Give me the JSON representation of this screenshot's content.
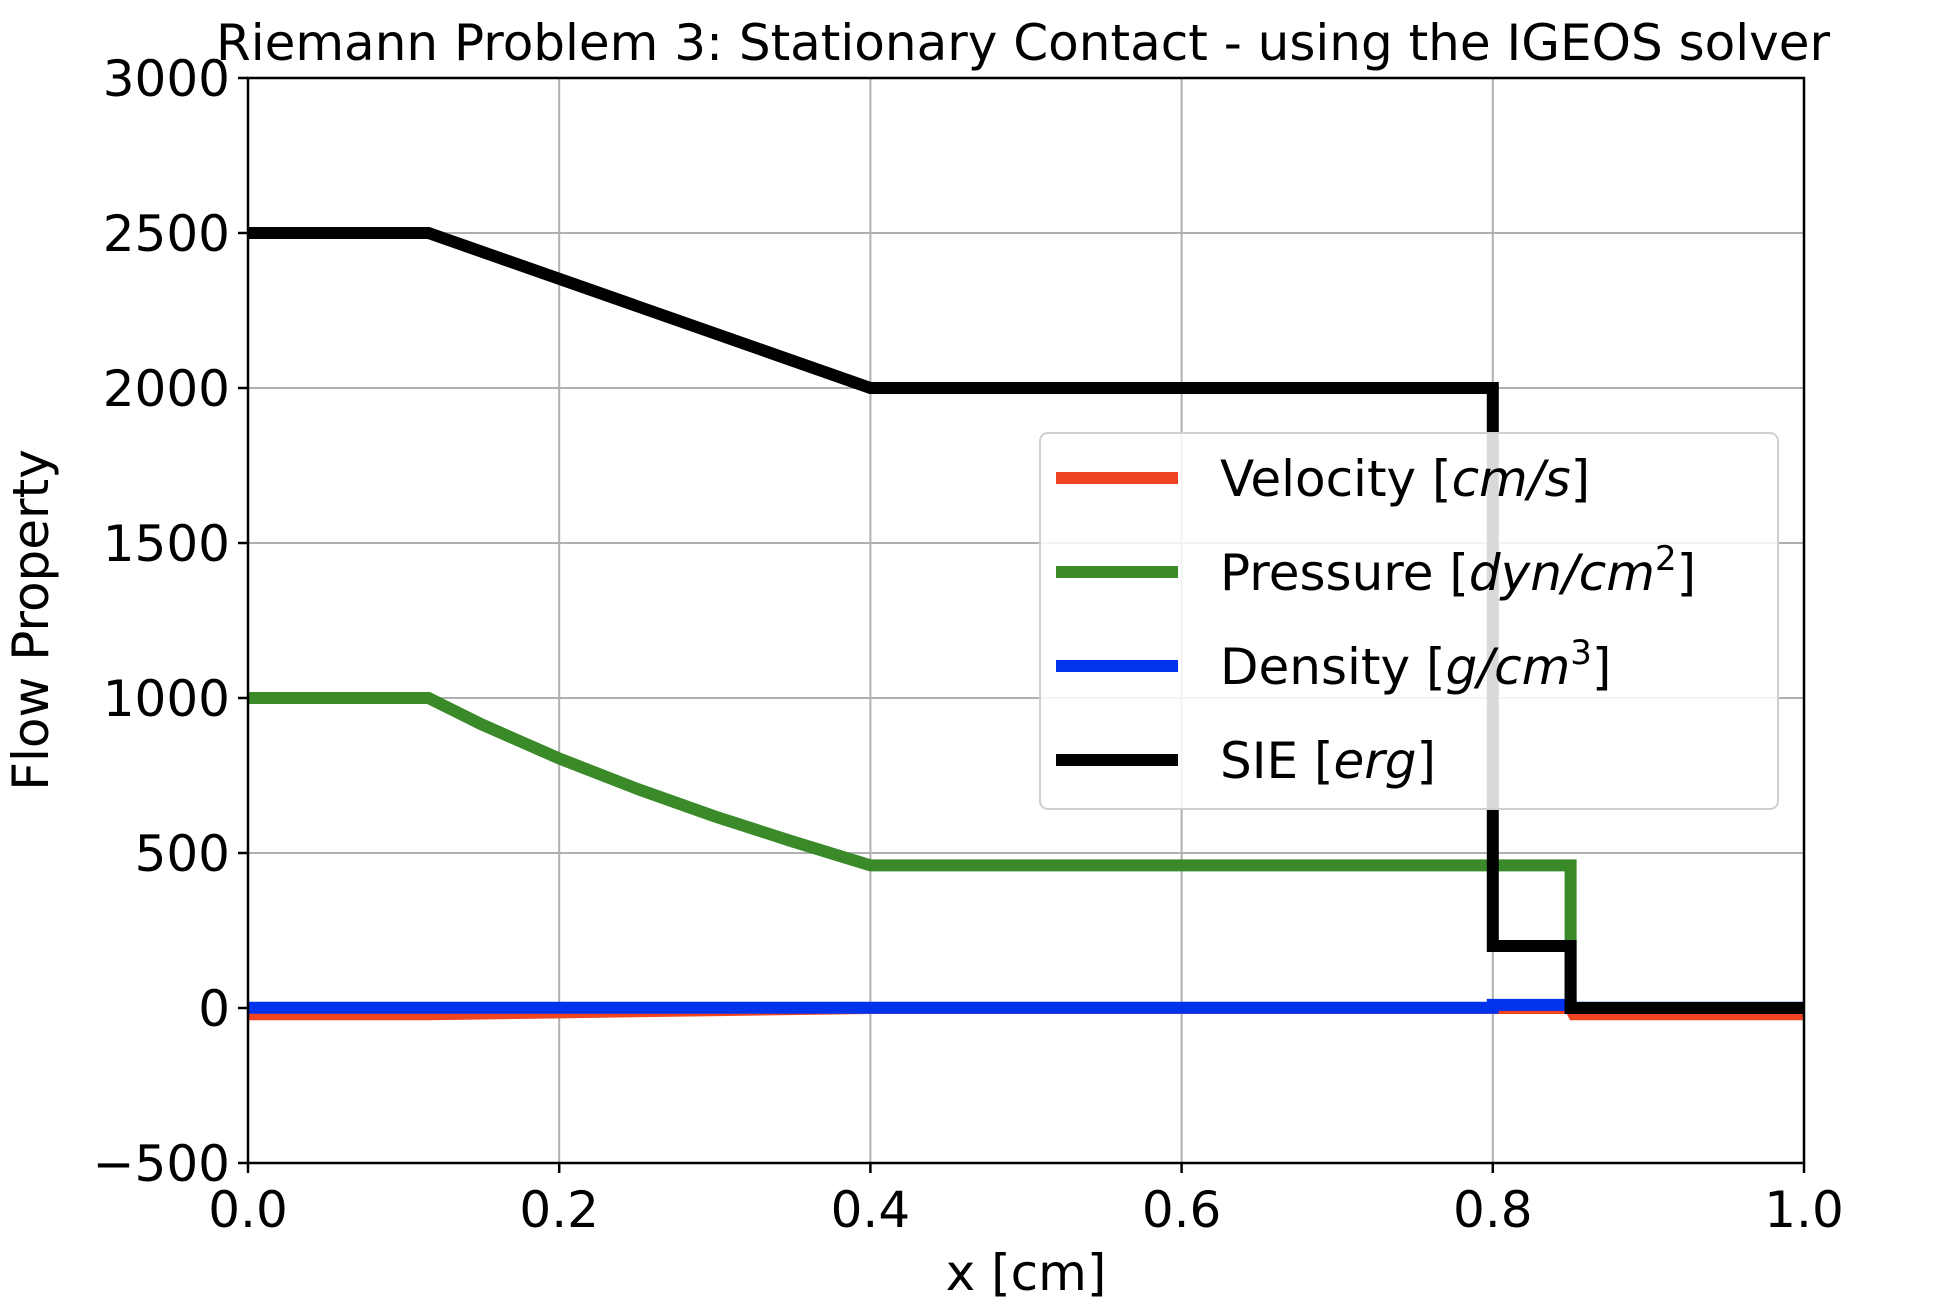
{
  "chart_data": {
    "type": "line",
    "title": "Riemann Problem 3: Stationary Contact - using the IGEOS solver",
    "xlabel": "x [cm]",
    "ylabel": "Flow Property",
    "xlim": [
      0.0,
      1.0
    ],
    "ylim": [
      -500,
      3000
    ],
    "xticks": [
      0.0,
      0.2,
      0.4,
      0.6,
      0.8,
      1.0
    ],
    "xtick_labels": [
      "0.0",
      "0.2",
      "0.4",
      "0.6",
      "0.8",
      "1.0"
    ],
    "yticks": [
      -500,
      0,
      500,
      1000,
      1500,
      2000,
      2500,
      3000
    ],
    "ytick_labels": [
      "−500",
      "0",
      "500",
      "1000",
      "1500",
      "2000",
      "2500",
      "3000"
    ],
    "grid": true,
    "legend_position": "center-right",
    "series": [
      {
        "name": "Velocity",
        "unit": "cm/s",
        "color": "#ee4422",
        "x": [
          0.0,
          0.116,
          0.4,
          0.8,
          0.85,
          0.852,
          1.0
        ],
        "y": [
          -20,
          -20,
          0,
          0,
          0,
          -20,
          -20
        ]
      },
      {
        "name": "Pressure",
        "unit": "dyn/cm",
        "unit_sup": "2",
        "color": "#3a8a2a",
        "x": [
          0.0,
          0.116,
          0.15,
          0.2,
          0.25,
          0.3,
          0.35,
          0.4,
          0.85,
          0.85,
          1.0
        ],
        "y": [
          1000,
          1000,
          915,
          805,
          707,
          618,
          537,
          460,
          460,
          0,
          0
        ]
      },
      {
        "name": "Density",
        "unit": "g/cm",
        "unit_sup": "3",
        "color": "#0033ee",
        "x": [
          0.0,
          0.8,
          0.8,
          0.85,
          0.85,
          1.0
        ],
        "y": [
          1,
          1,
          10,
          10,
          1,
          1
        ]
      },
      {
        "name": "SIE",
        "unit": "erg",
        "color": "#000000",
        "x": [
          0.0,
          0.116,
          0.4,
          0.8,
          0.8,
          0.85,
          0.85,
          1.0
        ],
        "y": [
          2500,
          2500,
          2000,
          2000,
          200,
          200,
          0,
          0
        ]
      }
    ]
  }
}
